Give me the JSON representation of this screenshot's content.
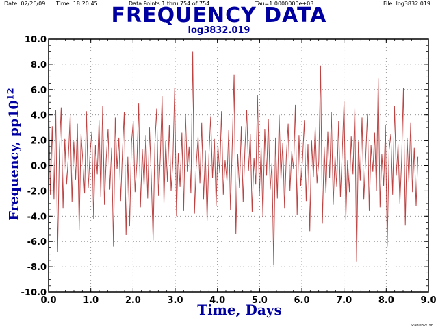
{
  "header": {
    "date": "Date: 02/26/09",
    "time": "Time: 18:20:45",
    "points": "Data Points 1 thru 754 of 754",
    "tau": "Tau=1.0000000e+03",
    "file": "File: log3832.019"
  },
  "footer": "Stable32/1vb",
  "colors": {
    "title": "#0000a0",
    "data": "#b22222",
    "grid": "#808080"
  },
  "chart_data": {
    "type": "line",
    "title": "FREQUENCY DATA",
    "subtitle": "log3832.019",
    "xlabel": "Time, Days",
    "ylabel_main": "Frequency, pp10",
    "ylabel_exp": "12",
    "xlim": [
      0,
      9
    ],
    "ylim": [
      -10,
      10
    ],
    "x_ticks": [
      "0.0",
      "1.0",
      "2.0",
      "3.0",
      "4.0",
      "5.0",
      "6.0",
      "7.0",
      "8.0",
      "9.0"
    ],
    "y_ticks": [
      "10.0",
      "8.0",
      "6.0",
      "4.0",
      "2.0",
      "0.0",
      "-2.0",
      "-4.0",
      "-6.0",
      "-8.0",
      "-10.0"
    ],
    "grid": true,
    "series": [
      {
        "x_start": 0,
        "x_step": 0.01155,
        "values": [
          5.2,
          -2.3,
          3.1,
          -2.7,
          4.4,
          -6.8,
          1.2,
          4.6,
          -3.4,
          2.1,
          -1.5,
          0.8,
          4.0,
          -2.9,
          1.9,
          -1.1,
          3.3,
          -5.1,
          2.5,
          0.4,
          -2.2,
          4.3,
          -1.8,
          0.9,
          2.7,
          -4.2,
          1.6,
          -0.7,
          3.6,
          -2.5,
          4.7,
          -3.1,
          0.5,
          2.9,
          -1.9,
          1.4,
          -6.4,
          3.8,
          -0.3,
          2.2,
          -2.8,
          1.1,
          4.2,
          -5.5,
          0.7,
          -4.8,
          1.8,
          3.5,
          -2.1,
          0.2,
          4.9,
          -3.3,
          1.3,
          -1.6,
          2.4,
          -2.6,
          3.0,
          -0.9,
          -5.9,
          1.7,
          4.5,
          -2.4,
          0.6,
          5.5,
          -3.0,
          2.0,
          -1.3,
          3.2,
          -2.0,
          0.3,
          6.1,
          -4.0,
          1.0,
          -1.7,
          2.6,
          -3.6,
          4.1,
          -0.5,
          1.5,
          -2.2,
          9.0,
          -3.8,
          0.1,
          2.3,
          -1.4,
          3.4,
          -2.7,
          1.2,
          -4.4,
          0.8,
          3.9,
          -1.0,
          2.1,
          -3.2,
          1.6,
          -0.6,
          4.3,
          -2.3,
          0.4,
          -1.2,
          2.8,
          -3.5,
          1.9,
          7.2,
          -5.4,
          0.9,
          -1.8,
          3.1,
          -2.9,
          1.3,
          4.4,
          -0.4,
          2.5,
          -3.7,
          0.6,
          -1.5,
          5.6,
          -2.4,
          1.4,
          -4.1,
          2.9,
          -0.8,
          3.7,
          -1.9,
          0.2,
          -7.9,
          2.2,
          -2.6,
          4.0,
          -1.1,
          1.8,
          -3.4,
          0.7,
          3.3,
          -2.0,
          1.1,
          -0.3,
          4.8,
          -3.9,
          2.4,
          -1.6,
          0.5,
          3.6,
          -2.8,
          1.7,
          -5.2,
          2.0,
          -0.9,
          3.0,
          -1.4,
          0.3,
          7.9,
          -4.6,
          1.5,
          -2.2,
          2.7,
          -1.0,
          4.2,
          -3.1,
          0.8,
          -1.7,
          3.5,
          -2.5,
          1.0,
          5.1,
          -4.3,
          0.4,
          -2.1,
          2.3,
          -0.7,
          4.6,
          -7.6,
          1.9,
          -1.2,
          3.8,
          -2.7,
          0.6,
          4.1,
          -3.6,
          1.6,
          -0.5,
          2.6,
          -2.0,
          6.9,
          -3.3,
          0.9,
          -1.6,
          3.2,
          -6.4,
          1.2,
          2.5,
          -2.3,
          4.7,
          -0.8,
          1.7,
          -3.0,
          0.5,
          6.1,
          -4.7,
          2.2,
          -1.3,
          3.4,
          -2.1,
          1.4,
          -3.2,
          0.7
        ]
      }
    ]
  }
}
